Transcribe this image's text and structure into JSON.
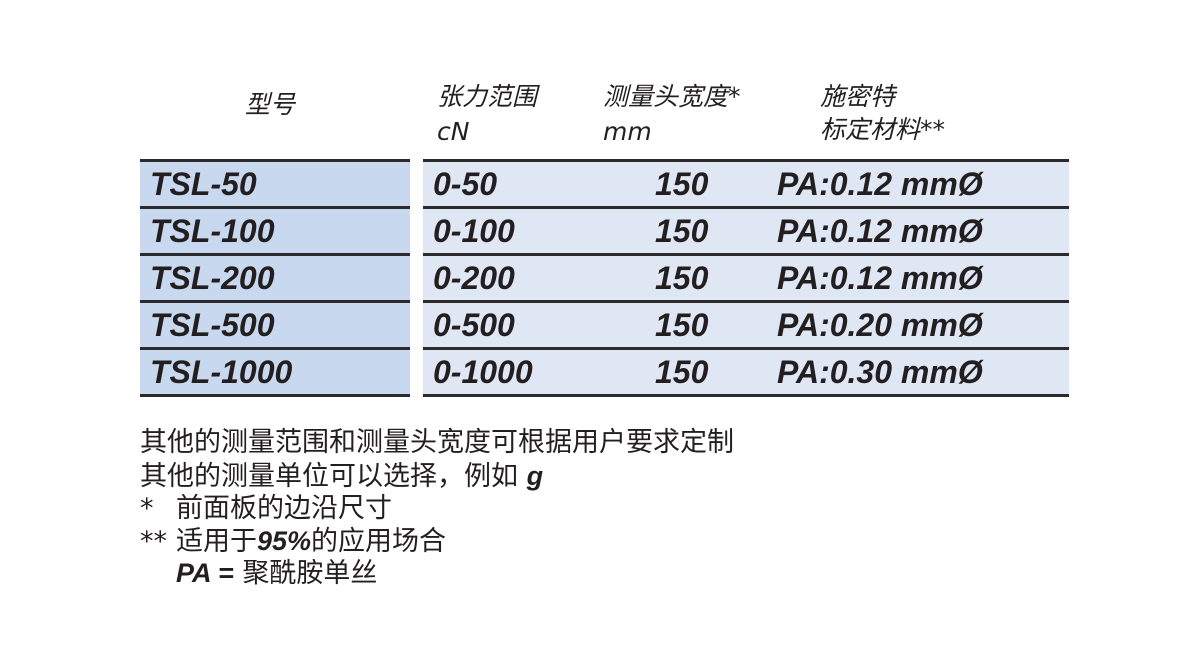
{
  "header": {
    "model": "型号",
    "range": "张力范围",
    "range_unit": "cN",
    "width": "测量头宽度*",
    "width_unit": "mm",
    "material": "施密特",
    "material2": "标定材料**"
  },
  "rows": [
    {
      "model": "TSL-50",
      "range": "0-50",
      "width": "150",
      "material": "PA:0.12 mmØ"
    },
    {
      "model": "TSL-100",
      "range": "0-100",
      "width": "150",
      "material": "PA:0.12 mmØ"
    },
    {
      "model": "TSL-200",
      "range": "0-200",
      "width": "150",
      "material": "PA:0.12 mmØ"
    },
    {
      "model": "TSL-500",
      "range": "0-500",
      "width": "150",
      "material": "PA:0.20 mmØ"
    },
    {
      "model": "TSL-1000",
      "range": "0-1000",
      "width": "150",
      "material": "PA:0.30 mmØ"
    }
  ],
  "notes": {
    "line1": "其他的测量范围和测量头宽度可根据用户要求定制",
    "line2": "其他的测量单位可以选择，例如 ",
    "line2_unit": "g",
    "line3_mark": "*",
    "line3": "前面板的边沿尺寸",
    "line4_mark": "**",
    "line4_a": "适用于",
    "line4_pct": "95%",
    "line4_b": "的应用场合",
    "line5_pa": "PA =",
    "line5": "聚酰胺单丝"
  },
  "colors": {
    "model_column": "#c8d8ee",
    "data_columns": "#dfe7f4"
  }
}
